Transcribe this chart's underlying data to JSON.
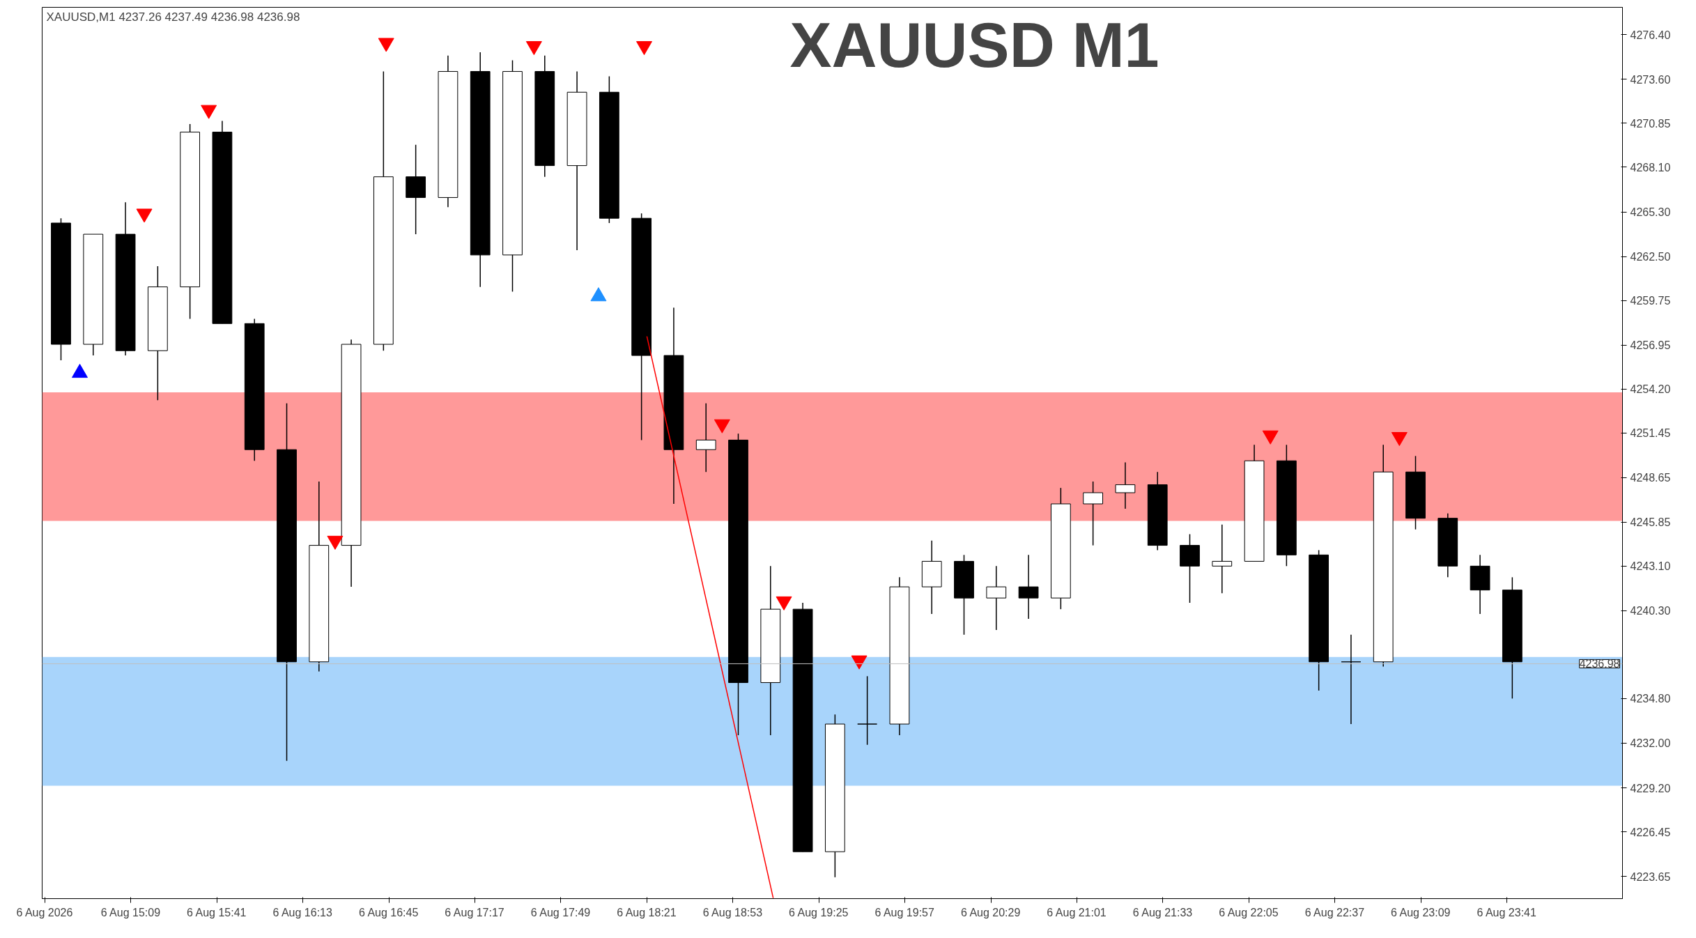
{
  "chart_data": {
    "type": "candlestick",
    "title": "XAUUSD M1",
    "annotations": [
      "XAUUSD,M1  4237.26 4237.49 4236.98 4236.98"
    ],
    "x": [
      "2026-08-06T14:43",
      "2026-08-06T14:55",
      "2026-08-06T15:07",
      "2026-08-06T15:19",
      "2026-08-06T15:31",
      "2026-08-06T15:43",
      "2026-08-06T15:55",
      "2026-08-06T16:07",
      "2026-08-06T16:19",
      "2026-08-06T16:31",
      "2026-08-06T16:43",
      "2026-08-06T16:55",
      "2026-08-06T17:07",
      "2026-08-06T17:19",
      "2026-08-06T17:31",
      "2026-08-06T17:43",
      "2026-08-06T17:55",
      "2026-08-06T18:07",
      "2026-08-06T18:19",
      "2026-08-06T18:31",
      "2026-08-06T18:43",
      "2026-08-06T18:55",
      "2026-08-06T19:07",
      "2026-08-06T19:19",
      "2026-08-06T19:31",
      "2026-08-06T19:43",
      "2026-08-06T19:55",
      "2026-08-06T20:07",
      "2026-08-06T20:19",
      "2026-08-06T20:31",
      "2026-08-06T20:43",
      "2026-08-06T20:55",
      "2026-08-06T21:07",
      "2026-08-06T21:19",
      "2026-08-06T21:31",
      "2026-08-06T21:43",
      "2026-08-06T21:55",
      "2026-08-06T22:07",
      "2026-08-06T22:19",
      "2026-08-06T22:31",
      "2026-08-06T22:43",
      "2026-08-06T22:55",
      "2026-08-06T23:07",
      "2026-08-06T23:19",
      "2026-08-06T23:31",
      "2026-08-06T23:43"
    ],
    "ohlc": [
      [
        4264.6,
        4264.9,
        4256.0,
        4257.0
      ],
      [
        4257.0,
        4263.9,
        4256.3,
        4263.9
      ],
      [
        4263.9,
        4265.9,
        4256.3,
        4256.6
      ],
      [
        4256.6,
        4261.9,
        4253.5,
        4260.6
      ],
      [
        4260.6,
        4270.8,
        4258.6,
        4270.3
      ],
      [
        4270.3,
        4271.0,
        4258.3,
        4258.3
      ],
      [
        4258.3,
        4258.6,
        4249.7,
        4250.4
      ],
      [
        4250.4,
        4253.3,
        4230.9,
        4237.1
      ],
      [
        4237.1,
        4248.4,
        4236.5,
        4244.4
      ],
      [
        4244.4,
        4257.3,
        4241.8,
        4257.0
      ],
      [
        4257.0,
        4274.1,
        4256.6,
        4267.5
      ],
      [
        4267.5,
        4269.5,
        4263.9,
        4266.2
      ],
      [
        4266.2,
        4275.1,
        4265.6,
        4274.1
      ],
      [
        4274.1,
        4275.3,
        4260.6,
        4262.6
      ],
      [
        4262.6,
        4274.8,
        4260.3,
        4274.1
      ],
      [
        4274.1,
        4275.1,
        4267.5,
        4268.2
      ],
      [
        4268.2,
        4274.1,
        4262.9,
        4272.8
      ],
      [
        4272.8,
        4273.8,
        4264.6,
        4264.9
      ],
      [
        4264.9,
        4265.2,
        4251.0,
        4256.3
      ],
      [
        4256.3,
        4259.3,
        4247.0,
        4250.4
      ],
      [
        4250.4,
        4253.3,
        4249.0,
        4251.0
      ],
      [
        4251.0,
        4251.4,
        4232.5,
        4235.8
      ],
      [
        4235.8,
        4243.1,
        4232.5,
        4240.4
      ],
      [
        4240.4,
        4240.8,
        4225.2,
        4225.2
      ],
      [
        4225.2,
        4233.8,
        4223.6,
        4233.2
      ],
      [
        4233.2,
        4236.2,
        4231.9,
        4233.2
      ],
      [
        4233.2,
        4242.4,
        4232.5,
        4241.8
      ],
      [
        4241.8,
        4244.7,
        4240.1,
        4243.4
      ],
      [
        4243.4,
        4243.8,
        4238.8,
        4241.1
      ],
      [
        4241.1,
        4243.1,
        4239.1,
        4241.8
      ],
      [
        4241.8,
        4243.8,
        4239.8,
        4241.1
      ],
      [
        4241.1,
        4248.0,
        4240.4,
        4247.0
      ],
      [
        4247.0,
        4248.4,
        4244.4,
        4247.7
      ],
      [
        4247.7,
        4249.6,
        4246.7,
        4248.2
      ],
      [
        4248.2,
        4249.0,
        4244.1,
        4244.4
      ],
      [
        4244.4,
        4245.1,
        4240.8,
        4243.1
      ],
      [
        4243.1,
        4245.7,
        4241.4,
        4243.4
      ],
      [
        4243.4,
        4250.7,
        4243.4,
        4249.7
      ],
      [
        4249.7,
        4250.7,
        4243.1,
        4243.8
      ],
      [
        4243.8,
        4244.1,
        4235.3,
        4237.1
      ],
      [
        4237.1,
        4238.8,
        4233.2,
        4237.1
      ],
      [
        4237.1,
        4250.7,
        4236.8,
        4249.0
      ],
      [
        4249.0,
        4250.0,
        4245.4,
        4246.1
      ],
      [
        4246.1,
        4246.4,
        4242.4,
        4243.1
      ],
      [
        4243.1,
        4243.8,
        4240.1,
        4241.6
      ],
      [
        4241.6,
        4242.4,
        4234.8,
        4237.1
      ]
    ],
    "series": [
      {
        "type": "line",
        "color": "#ff0000",
        "x": [
          "2026-08-06T18:21",
          "2026-08-06T19:08"
        ],
        "values": [
          4257.5,
          4222.3
        ]
      },
      {
        "type": "scatter",
        "color": "#ff0000",
        "x": [
          "2026-08-06T15:38",
          "2026-08-06T16:25",
          "2026-08-06T16:44",
          "2026-08-06T17:39",
          "2026-08-06T18:49",
          "2026-08-06T19:12",
          "2026-08-06T19:40",
          "2026-08-06T22:13",
          "2026-08-06T23:01",
          "2026-08-06T15:14",
          "2026-08-06T18:20"
        ],
        "values": [
          4271.7,
          4244.7,
          4275.9,
          4275.7,
          4252.0,
          4240.9,
          4237.2,
          4251.3,
          4251.2,
          4265.2,
          4275.7
        ]
      },
      {
        "type": "scatter",
        "marker": "triangle",
        "color": "#0000ff",
        "x": [
          "2026-08-06T14:50"
        ],
        "values": [
          4255.2
        ]
      },
      {
        "type": "scatter",
        "marker": "triangle",
        "color": "#1e90ff",
        "x": [
          "2026-08-06T18:03"
        ],
        "values": [
          4260.0
        ]
      }
    ],
    "bands": [
      {
        "axis": "y",
        "from": 4245.93,
        "to": 4253.99,
        "color": "#ff9999"
      },
      {
        "axis": "y",
        "from": 4229.34,
        "to": 4237.4,
        "color": "#a8d4fb"
      }
    ],
    "ref_lines": [
      {
        "axis": "y",
        "value": 4236.98,
        "label": "4236.98",
        "color": "#c0c0c0"
      }
    ],
    "xlim": [
      "2026-08-06T14:36",
      "2026-08-07T00:24"
    ],
    "ylim": [
      4222.26,
      4278.12
    ],
    "xticks": [
      {
        "value": "2026-08-06T14:37",
        "label": "6 Aug 2026"
      },
      {
        "value": "2026-08-06T15:09",
        "label": "6 Aug 15:09"
      },
      {
        "value": "2026-08-06T15:41",
        "label": "6 Aug 15:41"
      },
      {
        "value": "2026-08-06T16:13",
        "label": "6 Aug 16:13"
      },
      {
        "value": "2026-08-06T16:45",
        "label": "6 Aug 16:45"
      },
      {
        "value": "2026-08-06T17:17",
        "label": "6 Aug 17:17"
      },
      {
        "value": "2026-08-06T17:49",
        "label": "6 Aug 17:49"
      },
      {
        "value": "2026-08-06T18:21",
        "label": "6 Aug 18:21"
      },
      {
        "value": "2026-08-06T18:53",
        "label": "6 Aug 18:53"
      },
      {
        "value": "2026-08-06T19:25",
        "label": "6 Aug 19:25"
      },
      {
        "value": "2026-08-06T19:57",
        "label": "6 Aug 19:57"
      },
      {
        "value": "2026-08-06T20:29",
        "label": "6 Aug 20:29"
      },
      {
        "value": "2026-08-06T21:01",
        "label": "6 Aug 21:01"
      },
      {
        "value": "2026-08-06T21:33",
        "label": "6 Aug 21:33"
      },
      {
        "value": "2026-08-06T22:05",
        "label": "6 Aug 22:05"
      },
      {
        "value": "2026-08-06T22:37",
        "label": "6 Aug 22:37"
      },
      {
        "value": "2026-08-06T23:09",
        "label": "6 Aug 23:09"
      },
      {
        "value": "2026-08-06T23:41",
        "label": "6 Aug 23:41"
      }
    ],
    "yticks": [
      {
        "value": 4223.65,
        "label": "4223.65"
      },
      {
        "value": 4226.45,
        "label": "4226.45"
      },
      {
        "value": 4229.2,
        "label": "4229.20"
      },
      {
        "value": 4232.0,
        "label": "4232.00"
      },
      {
        "value": 4234.8,
        "label": "4234.80"
      },
      {
        "value": 4240.3,
        "label": "4240.30"
      },
      {
        "value": 4243.1,
        "label": "4243.10"
      },
      {
        "value": 4245.85,
        "label": "4245.85"
      },
      {
        "value": 4248.65,
        "label": "4248.65"
      },
      {
        "value": 4251.45,
        "label": "4251.45"
      },
      {
        "value": 4254.2,
        "label": "4254.20"
      },
      {
        "value": 4256.95,
        "label": "4256.95"
      },
      {
        "value": 4259.75,
        "label": "4259.75"
      },
      {
        "value": 4262.5,
        "label": "4262.50"
      },
      {
        "value": 4265.3,
        "label": "4265.30"
      },
      {
        "value": 4268.1,
        "label": "4268.10"
      },
      {
        "value": 4270.85,
        "label": "4270.85"
      },
      {
        "value": 4273.6,
        "label": "4273.60"
      },
      {
        "value": 4276.4,
        "label": "4276.40"
      }
    ],
    "grid": false
  }
}
